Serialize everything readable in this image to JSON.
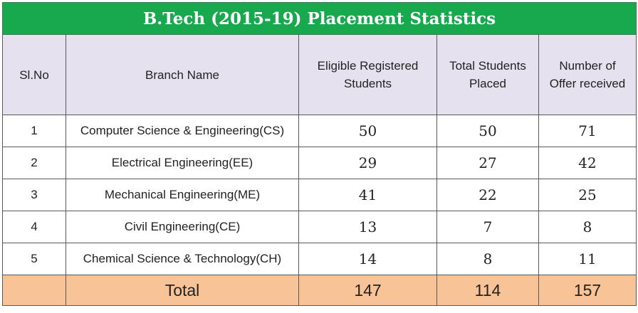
{
  "title": "B.Tech (2015-19) Placement Statistics",
  "headers": {
    "sl_no": "Sl.No",
    "branch": "Branch Name",
    "eligible": [
      "Eligible Registered",
      "Students"
    ],
    "placed": [
      "Total Students",
      "Placed"
    ],
    "offers": [
      "Number of",
      "Offer received"
    ]
  },
  "rows": [
    {
      "sl": "1",
      "branch": "Computer Science & Engineering(CS)",
      "eligible": "50",
      "placed": "50",
      "offers": "71"
    },
    {
      "sl": "2",
      "branch": "Electrical Engineering(EE)",
      "eligible": "29",
      "placed": "27",
      "offers": "42"
    },
    {
      "sl": "3",
      "branch": "Mechanical Engineering(ME)",
      "eligible": "41",
      "placed": "22",
      "offers": "25"
    },
    {
      "sl": "4",
      "branch": "Civil Engineering(CE)",
      "eligible": "13",
      "placed": "7",
      "offers": "8"
    },
    {
      "sl": "5",
      "branch": "Chemical Science & Technology(CH)",
      "eligible": "14",
      "placed": "8",
      "offers": "11"
    }
  ],
  "total": {
    "label": "Total",
    "eligible": "147",
    "placed": "114",
    "offers": "157"
  },
  "colors": {
    "title_bg": "#18a94f",
    "header_bg": "#e6e1ee",
    "total_bg": "#f8c396"
  }
}
